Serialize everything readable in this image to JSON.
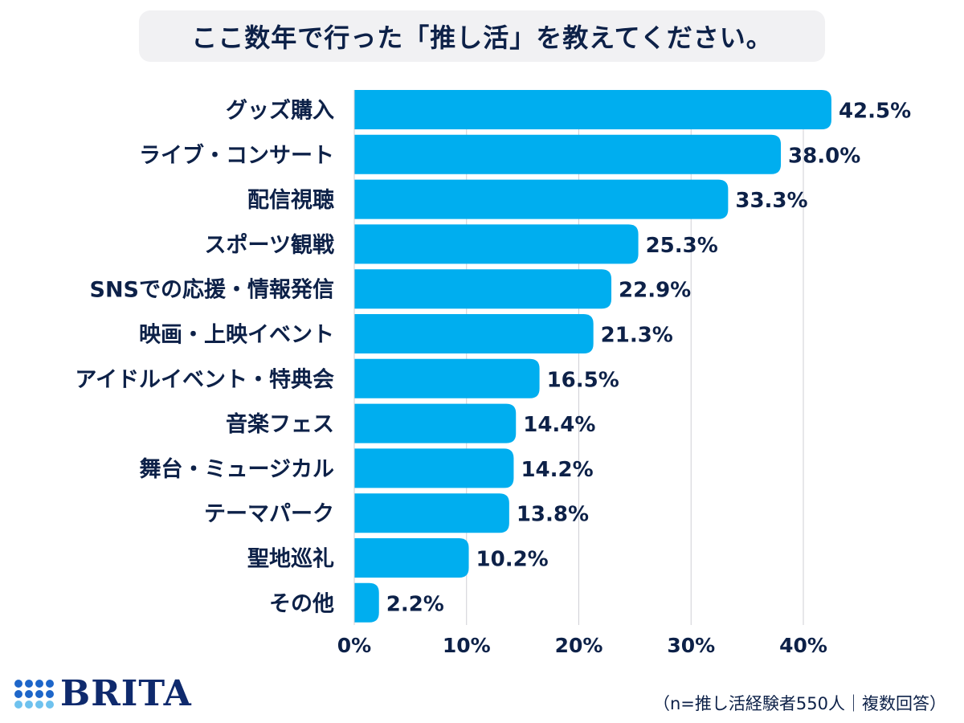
{
  "title": "ここ数年で行った「推し活」を教えてください。",
  "logo_text": "BRITA",
  "footnote": "（n=推し活経験者550人｜複数回答）",
  "colors": {
    "bar": "#00aeef",
    "text": "#0d2148",
    "grid": "#cfcfd6",
    "title_bg": "#f1f1f3",
    "logo_dark": "#0f2a6d",
    "logo_mid": "#1e66c9",
    "logo_light": "#6fc2ee"
  },
  "chart_data": {
    "type": "bar",
    "orientation": "horizontal",
    "categories": [
      "グッズ購入",
      "ライブ・コンサート",
      "配信視聴",
      "スポーツ観戦",
      "SNSでの応援・情報発信",
      "映画・上映イベント",
      "アイドルイベント・特典会",
      "音楽フェス",
      "舞台・ミュージカル",
      "テーマパーク",
      "聖地巡礼",
      "その他"
    ],
    "values": [
      42.5,
      38.0,
      33.3,
      25.3,
      22.9,
      21.3,
      16.5,
      14.4,
      14.2,
      13.8,
      10.2,
      2.2
    ],
    "value_labels": [
      "42.5%",
      "38.0%",
      "33.3%",
      "25.3%",
      "22.9%",
      "21.3%",
      "16.5%",
      "14.4%",
      "14.2%",
      "13.8%",
      "10.2%",
      "2.2%"
    ],
    "xlim": [
      0,
      42.5
    ],
    "xticks": [
      0,
      10,
      20,
      30,
      40
    ],
    "xtick_labels": [
      "0%",
      "10%",
      "20%",
      "30%",
      "40%"
    ],
    "grid": true
  }
}
